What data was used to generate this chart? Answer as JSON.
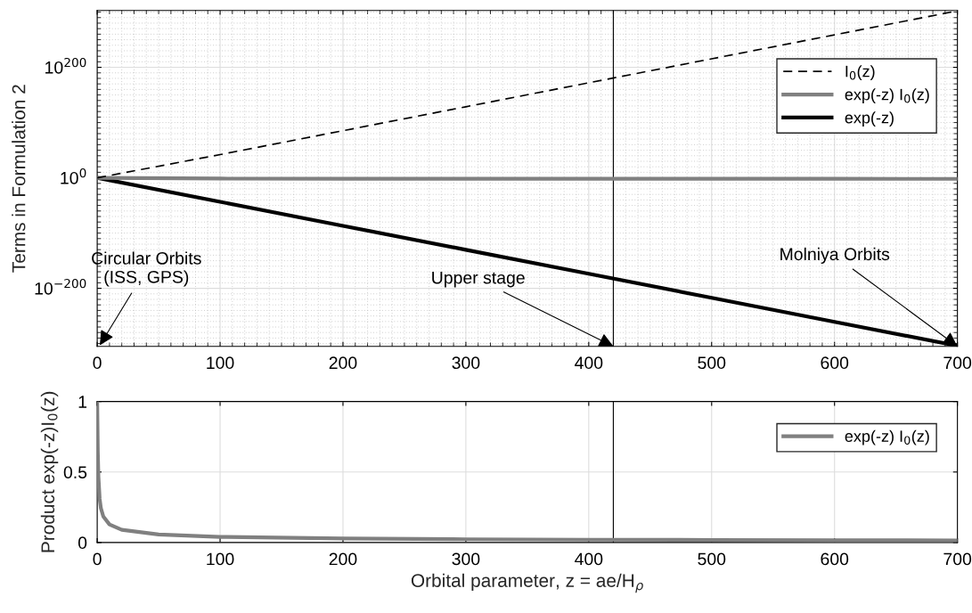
{
  "chart_data": [
    {
      "type": "line",
      "ylabel": "Terms in Formulation 2",
      "log": "y",
      "grid": true,
      "legend": "top right",
      "x": [
        0,
        100,
        200,
        300,
        400,
        500,
        600,
        700
      ],
      "xlim": [
        0,
        700
      ],
      "xticks": [
        0,
        100,
        200,
        300,
        400,
        500,
        600,
        700
      ],
      "ylim": [
        1e-305,
        1e+303
      ],
      "yticks": [
        {
          "value": 1e-200,
          "label": "10$^{−200}$"
        },
        {
          "value": 1,
          "label": "10$^{0}$"
        },
        {
          "value": 1e+200,
          "label": "10$^{200}$"
        }
      ],
      "series": [
        {
          "name": "I$_{0}$(z)",
          "color": "#000000",
          "line_style": "dashed",
          "values": [
            1,
            1.07e+42,
            2e+85,
            4.5e+128,
            1.05e+172,
            2.5e+215,
            6.2e+258,
            1.5e+302
          ]
        },
        {
          "name": "exp(-z) I$_{0}$(z)",
          "color": "#808080",
          "line_style": "solid",
          "values": [
            1,
            0.04,
            0.028,
            0.023,
            0.02,
            0.018,
            0.016,
            0.015
          ]
        },
        {
          "name": "exp(-z)",
          "color": "#000000",
          "line_style": "solid",
          "values": [
            1,
            4e-44,
            1.4e-87,
            5e-131,
            1.9e-174,
            7e-218,
            2.5e-261,
            9.9e-305
          ]
        }
      ],
      "ref_lines": [
        {
          "axis": "x",
          "value": 420,
          "color": "#000000"
        }
      ],
      "annotations": [
        "Circular Orbits\n(ISS, GPS)",
        {
          "text": "Upper stage",
          "x": 420,
          "y": 1e-305
        },
        {
          "text": "Molniya Orbits",
          "x": 700,
          "y": 1e-305
        }
      ]
    },
    {
      "type": "line",
      "ylabel": "Product exp(-z)I$_{0}$(z)",
      "xlabel": "Orbital parameter, z = ae/H$_{ρ}$",
      "grid": true,
      "legend": "top right",
      "xlim": [
        0,
        700
      ],
      "xticks": [
        0,
        100,
        200,
        300,
        400,
        500,
        600,
        700
      ],
      "ylim": [
        0,
        1
      ],
      "yticks": [
        0,
        0.5,
        1
      ],
      "x": [
        0,
        0.5,
        1,
        2,
        3,
        5,
        10,
        20,
        50,
        100,
        200,
        300,
        400,
        500,
        600,
        700
      ],
      "series": [
        {
          "name": "exp(-z) I$_{0}$(z)",
          "color": "#808080",
          "line_style": "solid",
          "values": [
            1,
            0.645,
            0.466,
            0.309,
            0.243,
            0.184,
            0.128,
            0.09,
            0.057,
            0.04,
            0.028,
            0.023,
            0.02,
            0.018,
            0.016,
            0.015
          ]
        }
      ],
      "ref_lines": [
        {
          "axis": "x",
          "value": 420,
          "color": "#000000"
        }
      ]
    }
  ]
}
